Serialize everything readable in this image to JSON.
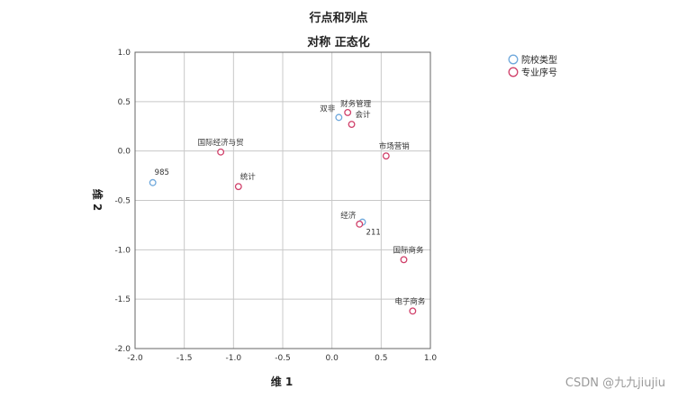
{
  "chart_data": {
    "type": "scatter",
    "title": "行点和列点",
    "subtitle": "对称 正态化",
    "xlabel": "维 1",
    "ylabel": "维 2",
    "xlim": [
      -2.0,
      1.0
    ],
    "ylim": [
      -2.0,
      1.0
    ],
    "xticks": [
      "-2.0",
      "-1.5",
      "-1.0",
      "-0.5",
      "0.0",
      "0.5",
      "1.0"
    ],
    "yticks": [
      "1.0",
      "0.5",
      "0.0",
      "-0.5",
      "-1.0",
      "-1.5",
      "-2.0"
    ],
    "grid": true,
    "legend_position": "top-right",
    "series": [
      {
        "name": "院校类型",
        "color": "#6fa8dc",
        "points": [
          {
            "label": "985",
            "x": -1.82,
            "y": -0.32
          },
          {
            "label": "双非",
            "x": 0.07,
            "y": 0.34
          },
          {
            "label": "211",
            "x": 0.31,
            "y": -0.72
          }
        ]
      },
      {
        "name": "专业序号",
        "color": "#d0406a",
        "points": [
          {
            "label": "国际经济与贸",
            "x": -1.13,
            "y": -0.01
          },
          {
            "label": "统计",
            "x": -0.95,
            "y": -0.36
          },
          {
            "label": "财务管理",
            "x": 0.16,
            "y": 0.39
          },
          {
            "label": "会计",
            "x": 0.2,
            "y": 0.27
          },
          {
            "label": "市场营销",
            "x": 0.55,
            "y": -0.05
          },
          {
            "label": "经济",
            "x": 0.28,
            "y": -0.74
          },
          {
            "label": "国际商务",
            "x": 0.73,
            "y": -1.1
          },
          {
            "label": "电子商务",
            "x": 0.82,
            "y": -1.62
          }
        ]
      }
    ]
  },
  "watermark": "CSDN @九九jiujiu"
}
